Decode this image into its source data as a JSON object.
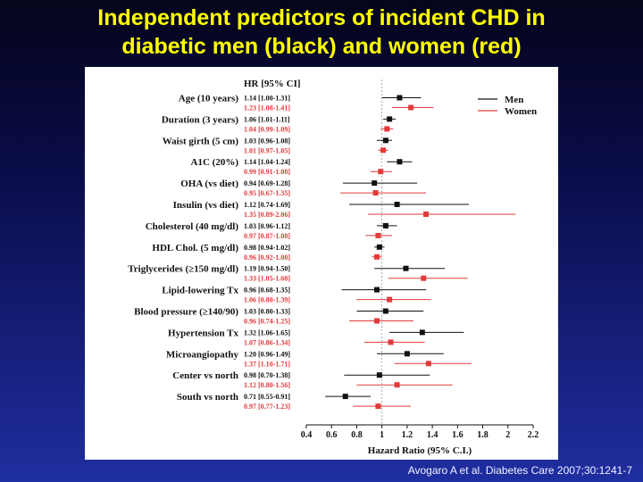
{
  "slide": {
    "title_line1": "Independent predictors of incident CHD in",
    "title_line2": "diabetic men (black) and women (red)",
    "citation": "Avogaro A et al. Diabetes Care 2007;30:1241-7"
  },
  "colors": {
    "men": "#111111",
    "women": "#e23a3a"
  },
  "chart_data": {
    "type": "forest",
    "column_header": "HR [95% CI]",
    "xlabel": "Hazard Ratio (95% C.I.)",
    "xlim": [
      0.4,
      2.2
    ],
    "xticks": [
      "0.4",
      "0.6",
      "0.8",
      "1",
      "1.2",
      "1.4",
      "1.6",
      "1.8",
      "2",
      "2.2"
    ],
    "reference_line": 1,
    "legend": [
      {
        "name": "Men",
        "key": "men"
      },
      {
        "name": "Women",
        "key": "women"
      }
    ],
    "legend_position": "top-right",
    "rows": [
      {
        "label": "Age (10 years)",
        "men": {
          "text": "1.14 [1.00-1.31]",
          "hr": 1.14,
          "lo": 1.0,
          "hi": 1.31
        },
        "women": {
          "text": "1.23 [1.08-1.41]",
          "hr": 1.23,
          "lo": 1.08,
          "hi": 1.41
        }
      },
      {
        "label": "Duration (3 years)",
        "men": {
          "text": "1.06 [1.01-1.11]",
          "hr": 1.06,
          "lo": 1.01,
          "hi": 1.11
        },
        "women": {
          "text": "1.04 [0.99-1.09]",
          "hr": 1.04,
          "lo": 0.99,
          "hi": 1.09
        }
      },
      {
        "label": "Waist girth (5 cm)",
        "men": {
          "text": "1.03 [0.96-1.08]",
          "hr": 1.03,
          "lo": 0.96,
          "hi": 1.08
        },
        "women": {
          "text": "1.01 [0.97-1.05]",
          "hr": 1.01,
          "lo": 0.97,
          "hi": 1.05
        }
      },
      {
        "label": "A1C (20%)",
        "men": {
          "text": "1.14 [1.04-1.24]",
          "hr": 1.14,
          "lo": 1.04,
          "hi": 1.24
        },
        "women": {
          "text": "0.99 [0.91-1.08]",
          "hr": 0.99,
          "lo": 0.91,
          "hi": 1.08
        }
      },
      {
        "label": "OHA (vs diet)",
        "men": {
          "text": "0.94 [0.69-1.28]",
          "hr": 0.94,
          "lo": 0.69,
          "hi": 1.28
        },
        "women": {
          "text": "0.95 [0.67-1.35]",
          "hr": 0.95,
          "lo": 0.67,
          "hi": 1.35
        }
      },
      {
        "label": "Insulin (vs diet)",
        "men": {
          "text": "1.12 [0.74-1.69]",
          "hr": 1.12,
          "lo": 0.74,
          "hi": 1.69
        },
        "women": {
          "text": "1.35 [0.89-2.06]",
          "hr": 1.35,
          "lo": 0.89,
          "hi": 2.06
        }
      },
      {
        "label": "Cholesterol (40 mg/dl)",
        "men": {
          "text": "1.03 [0.96-1.12]",
          "hr": 1.03,
          "lo": 0.96,
          "hi": 1.12
        },
        "women": {
          "text": "0.97 [0.87-1.08]",
          "hr": 0.97,
          "lo": 0.87,
          "hi": 1.08
        }
      },
      {
        "label": "HDL Chol. (5 mg/dl)",
        "men": {
          "text": "0.98 [0.94-1.02]",
          "hr": 0.98,
          "lo": 0.94,
          "hi": 1.02
        },
        "women": {
          "text": "0.96 [0.92-1.00]",
          "hr": 0.96,
          "lo": 0.92,
          "hi": 1.0
        }
      },
      {
        "label": "Triglycerides (≥150 mg/dl)",
        "men": {
          "text": "1.19 [0.94-1.50]",
          "hr": 1.19,
          "lo": 0.94,
          "hi": 1.5
        },
        "women": {
          "text": "1.33 [1.05-1.68]",
          "hr": 1.33,
          "lo": 1.05,
          "hi": 1.68
        }
      },
      {
        "label": "Lipid-lowering Tx",
        "men": {
          "text": "0.96 [0.68-1.35]",
          "hr": 0.96,
          "lo": 0.68,
          "hi": 1.35
        },
        "women": {
          "text": "1.06 [0.80-1.39]",
          "hr": 1.06,
          "lo": 0.8,
          "hi": 1.39
        }
      },
      {
        "label": "Blood pressure (≥140/90)",
        "men": {
          "text": "1.03 [0.80-1.33]",
          "hr": 1.03,
          "lo": 0.8,
          "hi": 1.33
        },
        "women": {
          "text": "0.96 [0.74-1.25]",
          "hr": 0.96,
          "lo": 0.74,
          "hi": 1.25
        }
      },
      {
        "label": "Hypertension Tx",
        "men": {
          "text": "1.32 [1.06-1.65]",
          "hr": 1.32,
          "lo": 1.06,
          "hi": 1.65
        },
        "women": {
          "text": "1.07 [0.86-1.34]",
          "hr": 1.07,
          "lo": 0.86,
          "hi": 1.34
        }
      },
      {
        "label": "Microangiopathy",
        "men": {
          "text": "1.20 [0.96-1.49]",
          "hr": 1.2,
          "lo": 0.96,
          "hi": 1.49
        },
        "women": {
          "text": "1.37 [1.10-1.71]",
          "hr": 1.37,
          "lo": 1.1,
          "hi": 1.71
        }
      },
      {
        "label": "Center vs north",
        "men": {
          "text": "0.98 [0.70-1.38]",
          "hr": 0.98,
          "lo": 0.7,
          "hi": 1.38
        },
        "women": {
          "text": "1.12 [0.80-1.56]",
          "hr": 1.12,
          "lo": 0.8,
          "hi": 1.56
        }
      },
      {
        "label": "South vs north",
        "men": {
          "text": "0.71 [0.55-0.91]",
          "hr": 0.71,
          "lo": 0.55,
          "hi": 0.91
        },
        "women": {
          "text": "0.97 [0.77-1.23]",
          "hr": 0.97,
          "lo": 0.77,
          "hi": 1.23
        }
      }
    ]
  }
}
